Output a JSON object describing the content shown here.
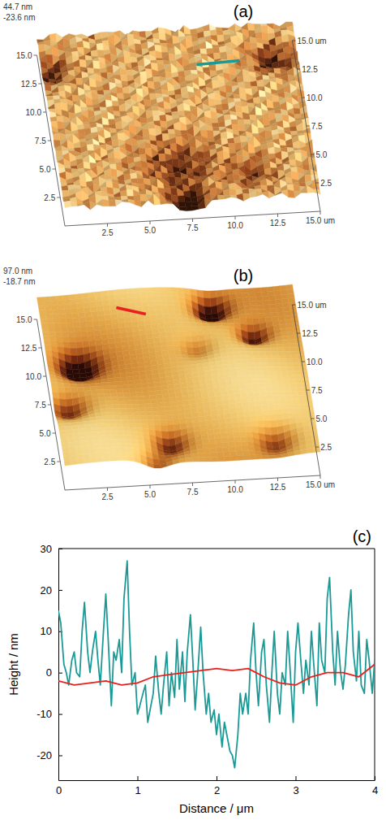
{
  "chart_data": [
    {
      "type": "afm_surface",
      "title": "(a)",
      "z_labels": [
        "44.7 nm",
        "-23.6 nm"
      ],
      "xlim": [
        0,
        15
      ],
      "ylim": [
        0,
        15
      ],
      "xticks": [
        2.5,
        {
          "value": 5,
          "label": "5.0"
        },
        7.5,
        {
          "value": 10,
          "label": "10.0"
        },
        12.5,
        {
          "value": 15,
          "label": "15.0 um"
        }
      ],
      "yticks": [
        2.5,
        {
          "value": 5,
          "label": "5.0"
        },
        7.5,
        {
          "value": 10,
          "label": "10.0"
        },
        12.5,
        {
          "value": 15,
          "label": "15.0"
        }
      ],
      "y2ticks": [
        2.5,
        {
          "value": 5,
          "label": "5.0"
        },
        7.5,
        {
          "value": 10,
          "label": "10.0"
        },
        12.5,
        {
          "value": 15,
          "label": "15.0 um"
        }
      ]
    },
    {
      "type": "afm_surface",
      "title": "(b)",
      "z_labels": [
        "97.0 nm",
        "-18.7 nm"
      ],
      "xlim": [
        0,
        15
      ],
      "ylim": [
        0,
        15
      ],
      "xticks": [
        2.5,
        {
          "value": 5,
          "label": "5.0"
        },
        7.5,
        {
          "value": 10,
          "label": "10.0"
        },
        12.5,
        {
          "value": 15,
          "label": "15.0 um"
        }
      ],
      "yticks": [
        2.5,
        {
          "value": 5,
          "label": "5.0"
        },
        7.5,
        {
          "value": 10,
          "label": "10.0"
        },
        12.5,
        {
          "value": 15,
          "label": "15.0"
        }
      ],
      "y2ticks": [
        2.5,
        {
          "value": 5,
          "label": "5.0"
        },
        7.5,
        {
          "value": 10,
          "label": "10.0"
        },
        12.5,
        {
          "value": 15,
          "label": "15.0 um"
        }
      ]
    },
    {
      "type": "line",
      "title": "(c)",
      "x_label": "Distance / μm",
      "y_label": "Height / nm",
      "xlim": [
        0,
        4
      ],
      "ylim": [
        -26,
        30
      ],
      "xticks": [
        0,
        1,
        2,
        3,
        4
      ],
      "yticks": [
        -20,
        -10,
        0,
        10,
        20,
        30
      ],
      "series": [
        {
          "color": "#1a9a96",
          "x": [
            0,
            0.03,
            0.07,
            0.1,
            0.13,
            0.17,
            0.2,
            0.23,
            0.27,
            0.3,
            0.33,
            0.37,
            0.4,
            0.43,
            0.47,
            0.5,
            0.53,
            0.57,
            0.6,
            0.63,
            0.67,
            0.7,
            0.73,
            0.77,
            0.8,
            0.83,
            0.87,
            0.9,
            0.93,
            0.97,
            1,
            1.03,
            1.07,
            1.1,
            1.13,
            1.17,
            1.2,
            1.23,
            1.27,
            1.3,
            1.33,
            1.37,
            1.4,
            1.43,
            1.47,
            1.5,
            1.53,
            1.57,
            1.6,
            1.63,
            1.67,
            1.7,
            1.73,
            1.77,
            1.8,
            1.83,
            1.87,
            1.9,
            1.93,
            1.97,
            2,
            2.03,
            2.07,
            2.1,
            2.13,
            2.17,
            2.2,
            2.23,
            2.27,
            2.3,
            2.33,
            2.37,
            2.4,
            2.43,
            2.47,
            2.5,
            2.53,
            2.57,
            2.6,
            2.63,
            2.67,
            2.7,
            2.73,
            2.77,
            2.8,
            2.83,
            2.87,
            2.9,
            2.93,
            2.97,
            3,
            3.03,
            3.07,
            3.1,
            3.13,
            3.17,
            3.2,
            3.23,
            3.27,
            3.3,
            3.33,
            3.37,
            3.4,
            3.43,
            3.47,
            3.5,
            3.53,
            3.57,
            3.6,
            3.63,
            3.67,
            3.7,
            3.73,
            3.77,
            3.8,
            3.83,
            3.87,
            3.9,
            3.93,
            3.97,
            4
          ],
          "values": [
            15,
            12,
            2,
            0,
            -3,
            3,
            5,
            0,
            -1,
            10,
            17,
            5,
            0,
            5,
            10,
            3,
            -3,
            10,
            19,
            8,
            -8,
            5,
            3,
            8,
            0,
            18,
            27,
            10,
            -3,
            0,
            -10,
            -8,
            -5,
            -3,
            -12,
            -8,
            -5,
            4,
            -5,
            -10,
            -3,
            5,
            -8,
            0,
            -6,
            8,
            -4,
            5,
            -7,
            5,
            14,
            3,
            -9,
            2,
            11,
            0,
            -10,
            -5,
            -12,
            -9,
            -15,
            -10,
            -18,
            -12,
            -15,
            -19,
            -20,
            -23,
            -15,
            -5,
            -10,
            -5,
            -10,
            3,
            12,
            0,
            -8,
            5,
            8,
            -3,
            -12,
            0,
            10,
            -5,
            -10,
            0,
            -3,
            10,
            1,
            -12,
            5,
            12,
            2,
            -5,
            3,
            -3,
            10,
            2,
            -8,
            12,
            3,
            0,
            18,
            23,
            5,
            -3,
            10,
            0,
            -4,
            2,
            14,
            20,
            5,
            -2,
            10,
            -3,
            -5,
            8,
            3,
            -5,
            3
          ]
        },
        {
          "color": "#e8201e",
          "x": [
            0,
            0.2,
            0.4,
            0.6,
            0.8,
            1,
            1.2,
            1.4,
            1.6,
            1.8,
            2,
            2.2,
            2.4,
            2.6,
            2.8,
            3,
            3.2,
            3.4,
            3.6,
            3.8,
            4
          ],
          "values": [
            -2,
            -3,
            -2.5,
            -2,
            -3,
            -2.5,
            -1,
            -0.5,
            0,
            0.5,
            1,
            0.5,
            1,
            -1,
            -2.5,
            -3,
            -1,
            0,
            0,
            -1,
            2
          ]
        }
      ]
    }
  ]
}
